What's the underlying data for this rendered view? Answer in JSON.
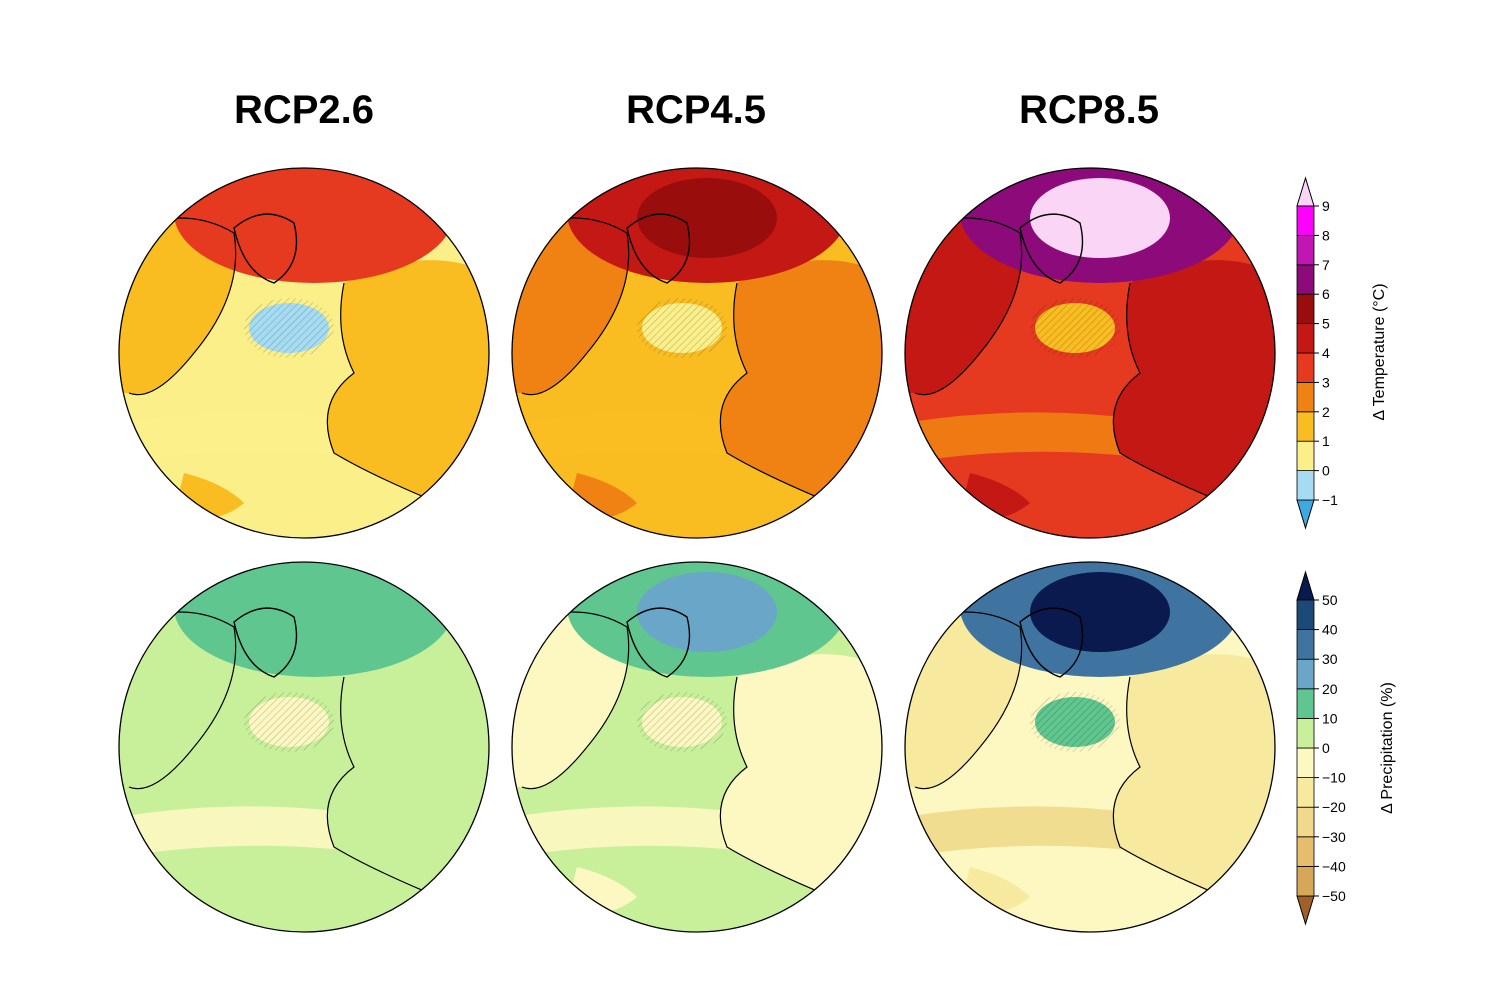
{
  "titles": [
    "RCP2.6",
    "RCP4.5",
    "RCP8.5"
  ],
  "colorbars": {
    "temperature": {
      "label": "Δ Temperature (°C)",
      "ticks": [
        "−1",
        "0",
        "1",
        "2",
        "3",
        "4",
        "5",
        "6",
        "7",
        "8",
        "9"
      ],
      "colors": [
        "#a6dcf2",
        "#fbef8a",
        "#f9bd22",
        "#ef8213",
        "#e53a1f",
        "#c41814",
        "#9a0d0d",
        "#8c0a7a",
        "#c116b3",
        "#ff00ff"
      ],
      "under_color": "#3fa8e0",
      "over_color": "#fbd5f5"
    },
    "precipitation": {
      "label": "Δ Precipitation (%)",
      "ticks": [
        "−50",
        "−40",
        "−30",
        "−20",
        "−10",
        "0",
        "10",
        "20",
        "30",
        "40",
        "50"
      ],
      "colors": [
        "#d6a659",
        "#e6bd6c",
        "#f0d98a",
        "#f7ea9e",
        "#fdf8c2",
        "#c8f09a",
        "#5ec68e",
        "#69a6c8",
        "#3f74a0",
        "#1c4a78"
      ],
      "under_color": "#a0602a",
      "over_color": "#0a1a4e"
    }
  },
  "maps": {
    "temperature": [
      {
        "scenario": "RCP2.6",
        "ocean": "#fbef8a",
        "land": "#f9bd22",
        "polar": "#e53a1f",
        "arctic_core": "#e53a1f",
        "subpolar": "#a6dcf2",
        "tropic_band": "#fbef8a"
      },
      {
        "scenario": "RCP4.5",
        "ocean": "#f9bd22",
        "land": "#ef8213",
        "polar": "#c41814",
        "arctic_core": "#9a0d0d",
        "subpolar": "#fbef8a",
        "tropic_band": "#f9bd22"
      },
      {
        "scenario": "RCP8.5",
        "ocean": "#e53a1f",
        "land": "#c41814",
        "polar": "#8c0a7a",
        "arctic_core": "#fbd5f5",
        "subpolar": "#f9bd22",
        "tropic_band": "#ef8213"
      }
    ],
    "precipitation": [
      {
        "scenario": "RCP2.6",
        "ocean": "#c8f09a",
        "land": "#c8f09a",
        "polar": "#5ec68e",
        "arctic_core": "#5ec68e",
        "subpolar": "#fdf8c2",
        "tropic_band": "#fdf8c2"
      },
      {
        "scenario": "RCP4.5",
        "ocean": "#c8f09a",
        "land": "#fdf8c2",
        "polar": "#5ec68e",
        "arctic_core": "#69a6c8",
        "subpolar": "#fdf8c2",
        "tropic_band": "#fdf8c2"
      },
      {
        "scenario": "RCP8.5",
        "ocean": "#fdf8c2",
        "land": "#f7ea9e",
        "polar": "#3f74a0",
        "arctic_core": "#0a1a4e",
        "subpolar": "#5ec68e",
        "tropic_band": "#f0d98a"
      }
    ]
  }
}
